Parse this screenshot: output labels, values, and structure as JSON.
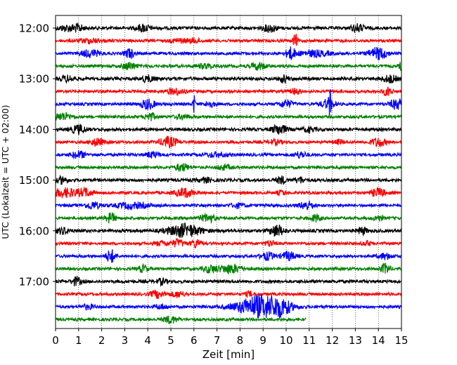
{
  "chart_data": {
    "type": "line",
    "title": "",
    "xlabel": "Zeit  [min]",
    "ylabel": "UTC (Lokalzeit = UTC + 02:00)",
    "xlim": [
      0,
      15
    ],
    "x_ticks": [
      "0",
      "1",
      "2",
      "3",
      "4",
      "5",
      "6",
      "7",
      "8",
      "9",
      "10",
      "11",
      "12",
      "13",
      "14",
      "15"
    ],
    "y_ticks": [
      "12:00",
      "13:00",
      "14:00",
      "15:00",
      "16:00",
      "17:00"
    ],
    "grid": "vertical dotted",
    "colors": [
      "#000000",
      "#ff0000",
      "#0000ff",
      "#008000"
    ],
    "series": [
      {
        "start": "12:00",
        "color": "#000000",
        "amp": 2.2,
        "end_min": 15,
        "events": [
          [
            0.6,
            0.5,
            4
          ],
          [
            1.0,
            0.2,
            3
          ],
          [
            3.8,
            0.3,
            5
          ],
          [
            9.3,
            0.3,
            5
          ],
          [
            13.1,
            0.3,
            5
          ]
        ]
      },
      {
        "start": "12:15",
        "color": "#ff0000",
        "amp": 2.0,
        "end_min": 15,
        "events": [
          [
            1.5,
            0.5,
            3
          ],
          [
            5.3,
            0.3,
            3
          ],
          [
            6.0,
            0.3,
            3
          ],
          [
            10.4,
            0.1,
            9
          ]
        ]
      },
      {
        "start": "12:30",
        "color": "#0000ff",
        "amp": 2.0,
        "end_min": 15,
        "events": [
          [
            1.5,
            0.4,
            5
          ],
          [
            3.2,
            0.2,
            7
          ],
          [
            10.2,
            0.2,
            8
          ],
          [
            11.2,
            0.7,
            4
          ],
          [
            14.0,
            0.4,
            8
          ]
        ]
      },
      {
        "start": "12:45",
        "color": "#008000",
        "amp": 2.0,
        "end_min": 15,
        "events": [
          [
            3.2,
            0.3,
            5
          ],
          [
            6.5,
            0.4,
            3
          ],
          [
            8.8,
            0.3,
            5
          ],
          [
            15.0,
            0.1,
            6
          ]
        ]
      },
      {
        "start": "13:00",
        "color": "#000000",
        "amp": 2.2,
        "end_min": 15,
        "events": [
          [
            0.5,
            0.3,
            4
          ],
          [
            4.0,
            0.3,
            4
          ],
          [
            9.9,
            0.2,
            5
          ],
          [
            14.5,
            0.3,
            5
          ]
        ]
      },
      {
        "start": "13:15",
        "color": "#ff0000",
        "amp": 2.0,
        "end_min": 15,
        "events": [
          [
            5.2,
            0.4,
            4
          ],
          [
            10.4,
            0.2,
            4
          ],
          [
            14.4,
            0.2,
            6
          ]
        ]
      },
      {
        "start": "13:30",
        "color": "#0000ff",
        "amp": 2.0,
        "end_min": 15,
        "events": [
          [
            4.0,
            0.3,
            7
          ],
          [
            6.0,
            0.05,
            14
          ],
          [
            6.7,
            0.2,
            4
          ],
          [
            10.0,
            0.3,
            5
          ],
          [
            11.9,
            0.05,
            16
          ],
          [
            11.8,
            0.3,
            6
          ],
          [
            14.8,
            0.3,
            7
          ]
        ]
      },
      {
        "start": "13:45",
        "color": "#008000",
        "amp": 2.0,
        "end_min": 15,
        "events": [
          [
            0.3,
            0.4,
            5
          ],
          [
            4.1,
            0.2,
            6
          ],
          [
            5.5,
            0.3,
            3
          ]
        ]
      },
      {
        "start": "14:00",
        "color": "#000000",
        "amp": 2.2,
        "end_min": 15,
        "events": [
          [
            1.0,
            0.3,
            6
          ],
          [
            9.7,
            0.3,
            7
          ],
          [
            11.0,
            0.3,
            3
          ]
        ]
      },
      {
        "start": "14:15",
        "color": "#ff0000",
        "amp": 2.0,
        "end_min": 15,
        "events": [
          [
            1.8,
            0.3,
            5
          ],
          [
            4.9,
            0.4,
            7
          ],
          [
            9.5,
            0.3,
            3
          ],
          [
            12.3,
            0.2,
            3
          ],
          [
            14.0,
            0.3,
            6
          ]
        ]
      },
      {
        "start": "14:30",
        "color": "#0000ff",
        "amp": 2.0,
        "end_min": 15,
        "events": [
          [
            1.0,
            0.3,
            5
          ],
          [
            4.2,
            0.3,
            4
          ],
          [
            7.0,
            0.5,
            3
          ],
          [
            10.6,
            0.3,
            4
          ]
        ]
      },
      {
        "start": "14:45",
        "color": "#008000",
        "amp": 2.0,
        "end_min": 15,
        "events": [
          [
            5.5,
            0.3,
            5
          ],
          [
            7.3,
            0.3,
            3
          ]
        ]
      },
      {
        "start": "15:00",
        "color": "#000000",
        "amp": 2.2,
        "end_min": 15,
        "events": [
          [
            0.3,
            0.2,
            5
          ],
          [
            6.5,
            0.3,
            3
          ],
          [
            9.8,
            0.2,
            5
          ],
          [
            10.6,
            0.2,
            4
          ]
        ]
      },
      {
        "start": "15:15",
        "color": "#ff0000",
        "amp": 2.0,
        "end_min": 15,
        "events": [
          [
            0.4,
            0.6,
            6
          ],
          [
            1.3,
            0.3,
            5
          ],
          [
            5.6,
            0.4,
            6
          ],
          [
            9.8,
            0.2,
            3
          ],
          [
            14.0,
            0.3,
            6
          ]
        ]
      },
      {
        "start": "15:30",
        "color": "#0000ff",
        "amp": 2.0,
        "end_min": 15,
        "events": [
          [
            1.6,
            0.3,
            5
          ],
          [
            3.3,
            0.7,
            4
          ],
          [
            7.9,
            0.3,
            3
          ],
          [
            10.9,
            0.3,
            6
          ]
        ]
      },
      {
        "start": "15:45",
        "color": "#008000",
        "amp": 2.0,
        "end_min": 15,
        "events": [
          [
            2.4,
            0.2,
            7
          ],
          [
            6.6,
            0.3,
            6
          ],
          [
            11.3,
            0.2,
            5
          ],
          [
            14.0,
            0.2,
            4
          ]
        ]
      },
      {
        "start": "16:00",
        "color": "#000000",
        "amp": 2.2,
        "end_min": 15,
        "events": [
          [
            0.3,
            0.3,
            4
          ],
          [
            5.6,
            0.7,
            9
          ],
          [
            9.6,
            0.3,
            8
          ],
          [
            13.3,
            0.2,
            5
          ]
        ]
      },
      {
        "start": "16:15",
        "color": "#ff0000",
        "amp": 2.0,
        "end_min": 15,
        "events": [
          [
            4.6,
            0.3,
            3
          ],
          [
            5.3,
            0.3,
            5
          ],
          [
            6.1,
            0.2,
            6
          ],
          [
            9.3,
            0.2,
            4
          ],
          [
            13.5,
            0.2,
            3
          ]
        ]
      },
      {
        "start": "16:30",
        "color": "#0000ff",
        "amp": 2.0,
        "end_min": 15,
        "events": [
          [
            2.4,
            0.2,
            9
          ],
          [
            9.2,
            0.3,
            5
          ],
          [
            10.1,
            0.3,
            6
          ],
          [
            14.3,
            0.3,
            4
          ]
        ]
      },
      {
        "start": "16:45",
        "color": "#008000",
        "amp": 2.0,
        "end_min": 15,
        "events": [
          [
            3.8,
            0.2,
            5
          ],
          [
            6.7,
            0.3,
            5
          ],
          [
            7.6,
            0.5,
            6
          ],
          [
            14.3,
            0.2,
            7
          ]
        ]
      },
      {
        "start": "17:00",
        "color": "#000000",
        "amp": 2.2,
        "end_min": 15,
        "events": [
          [
            0.9,
            0.2,
            6
          ],
          [
            4.6,
            0.2,
            4
          ]
        ]
      },
      {
        "start": "17:15",
        "color": "#ff0000",
        "amp": 2.0,
        "end_min": 15,
        "events": [
          [
            4.4,
            0.3,
            5
          ],
          [
            5.3,
            0.3,
            4
          ],
          [
            8.4,
            0.2,
            3
          ]
        ]
      },
      {
        "start": "17:30",
        "color": "#0000ff",
        "amp": 2.0,
        "end_min": 15,
        "events": [
          [
            1.4,
            0.3,
            3
          ],
          [
            4.6,
            0.3,
            3
          ],
          [
            8.9,
            1.0,
            16
          ],
          [
            9.8,
            0.4,
            7
          ]
        ]
      },
      {
        "start": "17:45",
        "color": "#008000",
        "amp": 2.0,
        "end_min": 10.85,
        "events": [
          [
            5.0,
            0.3,
            5
          ]
        ]
      }
    ]
  }
}
